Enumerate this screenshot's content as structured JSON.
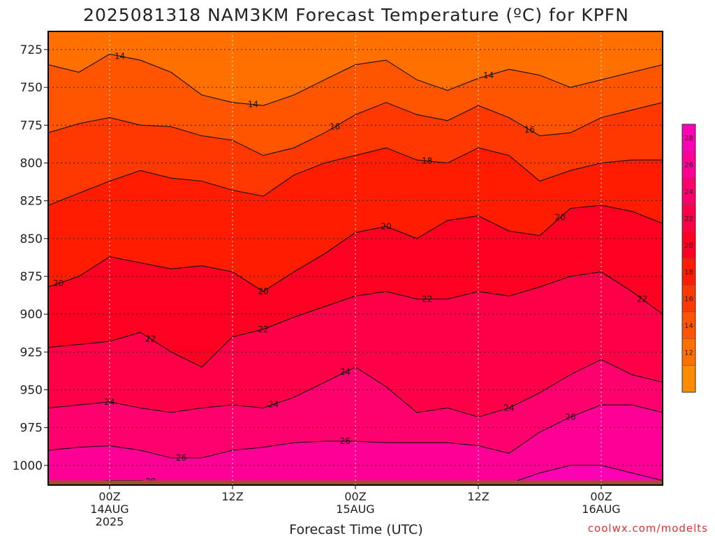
{
  "title": "2025081318 NAM3KM Forecast Temperature (ºC) for KPFN",
  "credit": "coolwx.com/modelts",
  "chart_data": {
    "type": "heatmap",
    "title": "2025081318 NAM3KM Forecast Temperature (ºC) for KPFN",
    "xlabel": "Forecast Time (UTC)",
    "ylabel": "",
    "x_ticks": [
      {
        "hour": 6,
        "lines": [
          "00Z",
          "14AUG",
          "2025"
        ]
      },
      {
        "hour": 18,
        "lines": [
          "12Z"
        ]
      },
      {
        "hour": 30,
        "lines": [
          "00Z",
          "15AUG"
        ]
      },
      {
        "hour": 42,
        "lines": [
          "12Z"
        ]
      },
      {
        "hour": 54,
        "lines": [
          "00Z",
          "16AUG"
        ]
      }
    ],
    "x_range_hours": [
      0,
      60
    ],
    "y_ticks": [
      725,
      750,
      775,
      800,
      825,
      850,
      875,
      900,
      925,
      950,
      975,
      1000
    ],
    "y_range_hpa": [
      713,
      1013
    ],
    "grid": true,
    "surface_pressure_hpa": 1010,
    "colorbar": {
      "levels": [
        10,
        12,
        14,
        16,
        18,
        20,
        22,
        24,
        26,
        28,
        30
      ],
      "tick_labels": [
        "12",
        "14",
        "16",
        "18",
        "20",
        "22",
        "24",
        "26",
        "28"
      ],
      "colors": [
        "#ff8c00",
        "#ff7000",
        "#ff5400",
        "#ff3800",
        "#ff1c00",
        "#ff0022",
        "#ff0048",
        "#ff006e",
        "#ff0096",
        "#ff00b4"
      ]
    },
    "isotherms": [
      {
        "value": 14,
        "pressure_by_hour": [
          735,
          740,
          728,
          732,
          740,
          755,
          760,
          762,
          755,
          745,
          735,
          732,
          745,
          752,
          744,
          738,
          742,
          750,
          745,
          740,
          735
        ],
        "labels_at_hours": [
          7,
          20,
          43
        ]
      },
      {
        "value": 16,
        "pressure_by_hour": [
          780,
          774,
          770,
          775,
          776,
          782,
          785,
          795,
          790,
          780,
          768,
          760,
          768,
          772,
          762,
          770,
          782,
          780,
          770,
          765,
          760
        ],
        "labels_at_hours": [
          28,
          47
        ]
      },
      {
        "value": 18,
        "pressure_by_hour": [
          828,
          820,
          812,
          805,
          810,
          812,
          818,
          822,
          808,
          800,
          795,
          790,
          798,
          800,
          790,
          795,
          812,
          805,
          800,
          798,
          798
        ],
        "labels_at_hours": [
          37
        ]
      },
      {
        "value": 20,
        "pressure_by_hour": [
          882,
          875,
          862,
          866,
          870,
          868,
          872,
          885,
          872,
          860,
          846,
          842,
          850,
          838,
          835,
          845,
          848,
          830,
          828,
          832,
          840
        ],
        "labels_at_hours": [
          1,
          21,
          33,
          50
        ]
      },
      {
        "value": 22,
        "pressure_by_hour": [
          922,
          920,
          918,
          912,
          925,
          935,
          915,
          910,
          902,
          895,
          888,
          885,
          890,
          890,
          885,
          888,
          882,
          875,
          872,
          885,
          900
        ],
        "labels_at_hours": [
          10,
          21,
          37,
          58
        ]
      },
      {
        "value": 24,
        "pressure_by_hour": [
          962,
          960,
          958,
          962,
          965,
          962,
          960,
          962,
          955,
          945,
          935,
          948,
          965,
          962,
          968,
          962,
          952,
          940,
          930,
          940,
          945
        ],
        "labels_at_hours": [
          6,
          22,
          29,
          45
        ]
      },
      {
        "value": 26,
        "pressure_by_hour": [
          990,
          988,
          987,
          990,
          995,
          995,
          990,
          988,
          985,
          984,
          984,
          985,
          985,
          985,
          987,
          992,
          978,
          968,
          960,
          960,
          965
        ],
        "labels_at_hours": [
          13,
          29,
          51
        ]
      },
      {
        "value": 28,
        "pressure_by_hour": [
          1013,
          1011,
          1010,
          1010,
          1012,
          1012,
          1013,
          1013,
          1013,
          1013,
          1013,
          1013,
          1013,
          1013,
          1013,
          1012,
          1005,
          1000,
          1000,
          1005,
          1010
        ],
        "labels_at_hours": [
          10
        ]
      }
    ]
  }
}
